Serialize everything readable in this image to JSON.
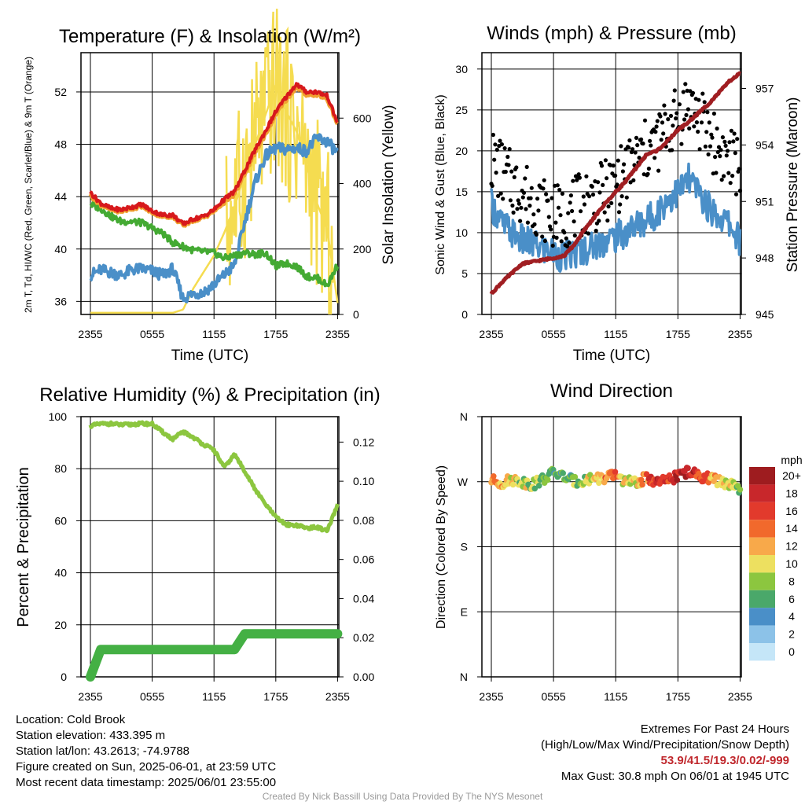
{
  "chart_data": [
    {
      "type": "line",
      "title": "Temperature (F) & Insolation (W/m²)",
      "xlabel": "Time (UTC)",
      "ylabel_left": "2m T, Td, HI/WC (Red, Green, Scarlet/Blue) & 9m T (Orange)",
      "ylabel_right": "Solar Insolation (Yellow)",
      "x_ticks": [
        "2355",
        "0555",
        "1155",
        "1755",
        "2355"
      ],
      "ylim": [
        35,
        55
      ],
      "y_ticks": [
        36,
        40,
        44,
        48,
        52
      ],
      "ylim_right": [
        0,
        800
      ],
      "y_ticks_right": [
        0,
        200,
        400,
        600
      ],
      "x": [
        0,
        1,
        2,
        3,
        4,
        5,
        6,
        7,
        8,
        9,
        10,
        11,
        12,
        13,
        14,
        15,
        16,
        17,
        18,
        19,
        20,
        21,
        22,
        23,
        24
      ],
      "series": [
        {
          "name": "2m T",
          "color": "#d7191c",
          "axis": "left",
          "values": [
            44.3,
            43.5,
            43.1,
            43.0,
            43.2,
            43.4,
            42.9,
            42.6,
            42.6,
            41.9,
            42.3,
            42.5,
            43.0,
            43.8,
            44.4,
            46.0,
            47.6,
            49.0,
            50.5,
            51.6,
            52.6,
            52.0,
            52.0,
            51.7,
            49.6
          ]
        },
        {
          "name": "9m T",
          "color": "#f0a030",
          "axis": "left",
          "values": [
            44.1,
            43.4,
            43.0,
            42.9,
            43.1,
            43.3,
            42.8,
            42.5,
            42.5,
            41.8,
            42.2,
            42.4,
            42.9,
            43.6,
            44.2,
            45.8,
            47.4,
            48.8,
            50.3,
            51.4,
            52.4,
            51.8,
            51.8,
            51.5,
            49.5
          ]
        },
        {
          "name": "Td",
          "color": "#44aa33",
          "axis": "left",
          "values": [
            43.4,
            43.1,
            42.5,
            42.1,
            42.1,
            42.0,
            41.6,
            41.2,
            40.5,
            40.2,
            39.9,
            39.8,
            39.7,
            39.3,
            39.5,
            39.7,
            39.6,
            39.7,
            38.7,
            38.9,
            38.7,
            37.9,
            37.8,
            37.2,
            38.8
          ]
        },
        {
          "name": "HI/WC",
          "color": "#4a8fc8",
          "axis": "left",
          "values": [
            38.0,
            38.4,
            38.2,
            38.0,
            38.4,
            38.5,
            38.3,
            38.0,
            38.5,
            36.2,
            36.6,
            36.7,
            37.3,
            38.0,
            38.8,
            42.1,
            45.1,
            47.1,
            47.7,
            47.6,
            47.7,
            47.5,
            48.5,
            48.2,
            47.3
          ]
        },
        {
          "name": "Solar Insolation",
          "color": "#f5dc50",
          "axis": "right",
          "values": [
            5,
            5,
            5,
            5,
            5,
            5,
            5,
            5,
            5,
            15,
            80,
            130,
            180,
            250,
            330,
            430,
            520,
            610,
            700,
            620,
            560,
            460,
            340,
            260,
            35
          ]
        }
      ]
    },
    {
      "type": "line",
      "title": "Winds (mph) & Pressure (mb)",
      "xlabel": "Time (UTC)",
      "ylabel_left": "Sonic Wind & Gust (Blue, Black)",
      "ylabel_right": "Station Pressure (Maroon)",
      "x_ticks": [
        "2355",
        "0555",
        "1155",
        "1755",
        "2355"
      ],
      "ylim": [
        0,
        32
      ],
      "y_ticks": [
        0,
        5,
        10,
        15,
        20,
        25,
        30
      ],
      "ylim_right": [
        945,
        958.9
      ],
      "y_ticks_right": [
        945,
        948,
        951,
        954,
        957
      ],
      "x": [
        0,
        1,
        2,
        3,
        4,
        5,
        6,
        7,
        8,
        9,
        10,
        11,
        12,
        13,
        14,
        15,
        16,
        17,
        18,
        19,
        20,
        21,
        22,
        23,
        24
      ],
      "series": [
        {
          "name": "Sonic Wind",
          "color": "#4a8fc8",
          "axis": "left",
          "values": [
            13.5,
            11.0,
            10.0,
            9.0,
            8.5,
            8.0,
            7.5,
            7.0,
            7.5,
            8.0,
            8.5,
            9.0,
            9.5,
            10.0,
            11.0,
            11.5,
            12.5,
            14.0,
            15.0,
            16.5,
            15.0,
            13.0,
            12.0,
            11.0,
            9.0
          ]
        },
        {
          "name": "Gust",
          "color": "#000000",
          "axis": "left",
          "style": "points",
          "values": [
            19.0,
            17.5,
            16.0,
            15.0,
            14.0,
            13.0,
            12.0,
            12.0,
            13.0,
            13.5,
            14.0,
            15.0,
            16.0,
            17.5,
            19.0,
            20.0,
            21.0,
            23.0,
            24.0,
            26.0,
            24.0,
            22.0,
            20.0,
            19.0,
            18.0
          ]
        },
        {
          "name": "Station Pressure",
          "color": "#a01e22",
          "axis": "right",
          "values": [
            946.1,
            946.7,
            947.2,
            947.7,
            947.8,
            947.9,
            948.0,
            948.1,
            948.7,
            949.5,
            950.2,
            950.9,
            951.5,
            952.1,
            952.8,
            953.5,
            953.7,
            954.2,
            954.8,
            955.2,
            955.7,
            956.2,
            956.8,
            957.4,
            957.8
          ]
        }
      ]
    },
    {
      "type": "line",
      "title": "Relative Humidity (%) & Precipitation (in)",
      "xlabel": "",
      "ylabel_left": "Percent & Precipitation",
      "x_ticks": [
        "2355",
        "0555",
        "1155",
        "1755",
        "2355"
      ],
      "ylim": [
        0,
        100
      ],
      "y_ticks": [
        0,
        20,
        40,
        60,
        80,
        100
      ],
      "ylim_right": [
        0,
        0.133
      ],
      "y_ticks_right": [
        "0.00",
        "0.02",
        "0.04",
        "0.06",
        "0.08",
        "0.10",
        "0.12"
      ],
      "x": [
        0,
        1,
        2,
        3,
        4,
        5,
        6,
        7,
        8,
        9,
        10,
        11,
        12,
        13,
        14,
        15,
        16,
        17,
        18,
        19,
        20,
        21,
        22,
        23,
        24
      ],
      "series": [
        {
          "name": "Relative Humidity",
          "color": "#8cc63f",
          "axis": "left",
          "values": [
            96.5,
            97.2,
            97.3,
            96.8,
            97.0,
            97.3,
            97.2,
            94.1,
            91.3,
            94.2,
            92.0,
            89.3,
            87.2,
            80.4,
            85.5,
            79.0,
            72.0,
            66.3,
            61.4,
            58.5,
            58.3,
            57.2,
            57.5,
            56.0,
            66.0
          ]
        },
        {
          "name": "Precipitation",
          "color": "#44b044",
          "axis": "right",
          "style": "thick",
          "values": [
            0.0,
            0.014,
            0.014,
            0.014,
            0.014,
            0.014,
            0.014,
            0.014,
            0.014,
            0.014,
            0.014,
            0.014,
            0.014,
            0.014,
            0.014,
            0.022,
            0.022,
            0.022,
            0.022,
            0.022,
            0.022,
            0.022,
            0.022,
            0.022,
            0.022
          ]
        }
      ]
    },
    {
      "type": "scatter",
      "title": "Wind Direction",
      "ylabel_left": "Direction (Colored By Speed)",
      "x_ticks": [
        "2355",
        "0555",
        "1155",
        "1755",
        "2355"
      ],
      "y_ticks": [
        "N",
        "E",
        "S",
        "W",
        "N"
      ],
      "ylim": [
        0,
        360
      ],
      "x": [
        0,
        1,
        2,
        3,
        4,
        5,
        6,
        7,
        8,
        9,
        10,
        11,
        12,
        13,
        14,
        15,
        16,
        17,
        18,
        19,
        20,
        21,
        22,
        23,
        24
      ],
      "series": [
        {
          "name": "Direction",
          "values": [
            272,
            268,
            273,
            270,
            266,
            274,
            283,
            277,
            270,
            272,
            276,
            274,
            280,
            270,
            268,
            276,
            269,
            271,
            279,
            284,
            278,
            275,
            270,
            266,
            258
          ]
        }
      ],
      "speeds": [
        12,
        11,
        10,
        9,
        8,
        7,
        6,
        6,
        7,
        9,
        11,
        13,
        14,
        10,
        9,
        15,
        17,
        16,
        18,
        19,
        17,
        13,
        11,
        10,
        7
      ],
      "legend": {
        "title": "mph",
        "labels": [
          "20+",
          "18",
          "16",
          "14",
          "12",
          "10",
          "8",
          "6",
          "4",
          "2",
          "0"
        ],
        "colors": [
          "#9e1c1f",
          "#c8272b",
          "#e23a2c",
          "#f1692c",
          "#f8a94a",
          "#ede060",
          "#8cc63f",
          "#4aa86a",
          "#4a8fc8",
          "#8cc2e8",
          "#c5e6f8"
        ]
      }
    }
  ],
  "footer": {
    "location": "Location: Cold Brook",
    "elevation": "Station elevation: 433.395 m",
    "latlon": "Station lat/lon: 43.2613; -74.9788",
    "created": "Figure created on Sun, 2025-06-01, at 23:59 UTC",
    "recent": "Most recent data timestamp: 2025/06/01 23:55:00",
    "extremes_title": "Extremes For Past 24 Hours",
    "extremes_desc": "(High/Low/Max Wind/Precipitation/Snow Depth)",
    "extremes_values": "53.9/41.5/19.3/0.02/-999",
    "max_gust": "Max Gust: 30.8 mph On 06/01 at 1945 UTC",
    "credit": "Created By Nick Bassill Using Data Provided By The NYS Mesonet"
  }
}
